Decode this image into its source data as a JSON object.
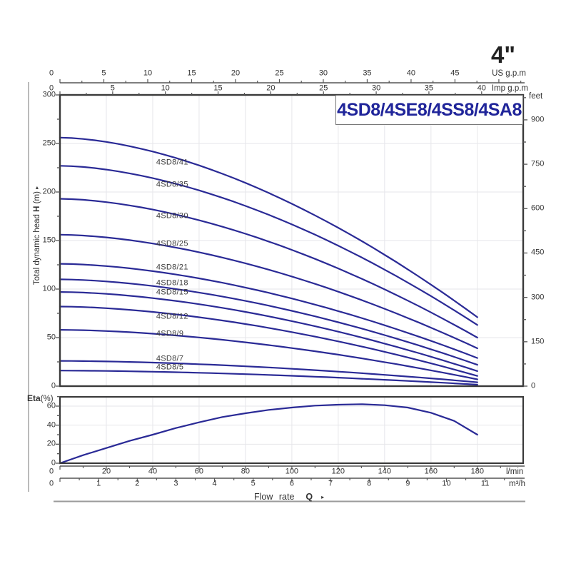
{
  "header": {
    "size_label": "4\"",
    "title": "4SD8/4SE8/4SS8/4SA8"
  },
  "units": {
    "us": "US g.p.m",
    "imp": "Imp g.p.m",
    "feet": "feet",
    "lmin": "l/min",
    "m3h": "m³/h"
  },
  "labels": {
    "y_axis_prefix": "Total dynamic head ",
    "y_axis_h": "H",
    "y_axis_suffix": " (m)",
    "y_axis_arrow": "▸",
    "eta_prefix": "Eta",
    "eta_suffix": "(%)",
    "flow_prefix": "Flow  rate",
    "flow_q": "Q",
    "flow_arrow": "▸"
  },
  "colors": {
    "curve": "#2a2a96",
    "title": "#20259a",
    "grid": "#e6e6ea",
    "axis": "#3a3a3a",
    "tick": "#555555",
    "text": "#333333"
  },
  "chart_data": [
    {
      "type": "line",
      "title": "4SD8/4SE8/4SS8/4SA8",
      "ylabel": "Total dynamic head H (m)",
      "ylabel_right": "feet",
      "xlabel": "Flow rate Q",
      "ylim_m": [
        0,
        300
      ],
      "ylim_feet": [
        0,
        984
      ],
      "xlim_lmin": [
        0,
        200
      ],
      "curves_end_at_lmin": 180,
      "curve_shape_exponent": 1.7,
      "grid": true,
      "head_ticks_m": [
        0,
        50,
        100,
        150,
        200,
        250,
        300
      ],
      "feet_ticks": [
        0,
        150,
        300,
        450,
        600,
        750,
        900
      ],
      "us_gpm_ticks": [
        0,
        5,
        10,
        15,
        20,
        25,
        30,
        35,
        40,
        45
      ],
      "imp_gpm_ticks": [
        0,
        5,
        10,
        15,
        20,
        25,
        30,
        35,
        40
      ],
      "lmin_ticks": [
        0,
        20,
        40,
        60,
        80,
        100,
        120,
        140,
        160,
        180
      ],
      "m3h_ticks": [
        0,
        1,
        2,
        3,
        4,
        5,
        6,
        7,
        8,
        9,
        10,
        11
      ],
      "series": [
        {
          "name": "4SD8/41",
          "head_at_0_lmin": 256,
          "head_at_180_lmin": 71,
          "label_head_m": 230
        },
        {
          "name": "4SD8/35",
          "head_at_0_lmin": 227,
          "head_at_180_lmin": 63,
          "label_head_m": 207
        },
        {
          "name": "4SD8/30",
          "head_at_0_lmin": 193,
          "head_at_180_lmin": 50,
          "label_head_m": 175
        },
        {
          "name": "4SD8/25",
          "head_at_0_lmin": 156,
          "head_at_180_lmin": 39,
          "label_head_m": 146
        },
        {
          "name": "4SD8/21",
          "head_at_0_lmin": 126,
          "head_at_180_lmin": 29,
          "label_head_m": 122
        },
        {
          "name": "4SD8/18",
          "head_at_0_lmin": 110,
          "head_at_180_lmin": 22,
          "label_head_m": 106
        },
        {
          "name": "4SD8/15",
          "head_at_0_lmin": 97,
          "head_at_180_lmin": 15.5,
          "label_head_m": 96
        },
        {
          "name": "4SD8/12",
          "head_at_0_lmin": 82,
          "head_at_180_lmin": 10.5,
          "label_head_m": 71
        },
        {
          "name": "4SD8/9",
          "head_at_0_lmin": 58,
          "head_at_180_lmin": 7,
          "label_head_m": 54
        },
        {
          "name": "4SD8/7",
          "head_at_0_lmin": 26,
          "head_at_180_lmin": 4,
          "label_head_m": 28
        },
        {
          "name": "4SD8/5",
          "head_at_0_lmin": 16,
          "head_at_180_lmin": 1.5,
          "label_head_m": 19
        }
      ]
    },
    {
      "type": "line",
      "title": "Eta(%)",
      "ylabel": "Eta(%)",
      "ylim_pct": [
        0,
        70
      ],
      "eta_ticks": [
        0,
        20,
        40,
        60
      ],
      "grid": true,
      "series": [
        {
          "name": "Eta",
          "points_lmin_pct": [
            [
              0,
              0
            ],
            [
              10,
              8.5
            ],
            [
              20,
              16
            ],
            [
              30,
              23.5
            ],
            [
              40,
              30
            ],
            [
              50,
              37
            ],
            [
              60,
              43
            ],
            [
              70,
              48.5
            ],
            [
              80,
              52.5
            ],
            [
              90,
              56
            ],
            [
              100,
              58.5
            ],
            [
              110,
              60.5
            ],
            [
              120,
              61.5
            ],
            [
              130,
              62
            ],
            [
              140,
              61
            ],
            [
              150,
              58.5
            ],
            [
              160,
              53
            ],
            [
              170,
              44.5
            ],
            [
              180,
              30
            ]
          ]
        }
      ]
    }
  ]
}
